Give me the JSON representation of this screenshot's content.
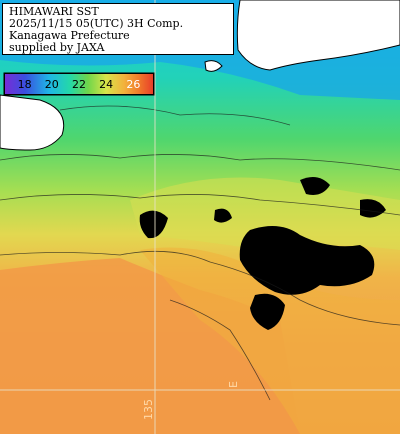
{
  "title": {
    "line1": "HIMAWARI SST",
    "line2": "2025/11/15 05(UTC) 3H Comp.",
    "line3": "Kanagawa Prefecture",
    "line4": "supplied by JAXA"
  },
  "colorbar": {
    "ticks": [
      "18",
      "20",
      "22",
      "24",
      "26"
    ],
    "colors": [
      "#7a2bd6",
      "#3a4fe0",
      "#1fb6e6",
      "#24d8a8",
      "#6fd64a",
      "#d7e44a",
      "#f3b23c",
      "#f07a2a",
      "#e83a2a"
    ]
  },
  "grid_labels": {
    "lon_label_1": "135",
    "lon_label_2": "E"
  },
  "colors": {
    "land": "#ffffff",
    "cloud": "#000000",
    "sea_cold": "#1fb6e6",
    "sea_mid": "#6fd64a",
    "sea_warm": "#f0a84a",
    "sea_hot": "#f29a46",
    "graticule": "#e9e2c8"
  }
}
